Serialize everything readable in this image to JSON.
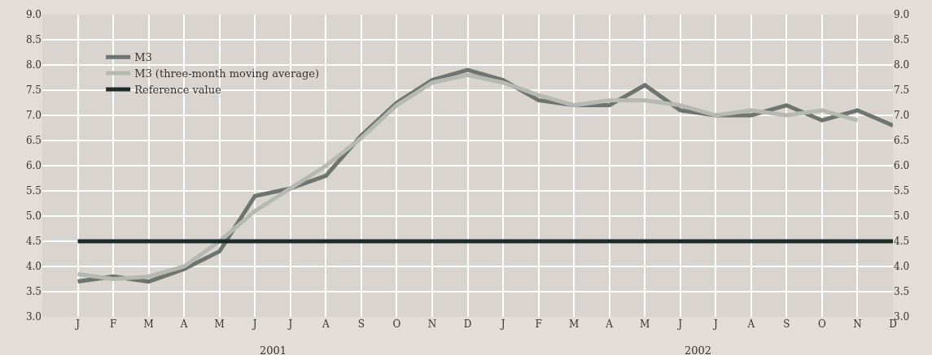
{
  "chart_data": {
    "type": "line",
    "categories": [
      "J",
      "F",
      "M",
      "A",
      "M",
      "J",
      "J",
      "A",
      "S",
      "O",
      "N",
      "D",
      "J",
      "F",
      "M",
      "A",
      "M",
      "J",
      "J",
      "A",
      "S",
      "O",
      "N",
      "D"
    ],
    "series": [
      {
        "name": "M3",
        "color": "#6e7570",
        "values": [
          3.7,
          3.8,
          3.7,
          3.95,
          4.3,
          5.4,
          5.55,
          5.8,
          6.6,
          7.25,
          7.7,
          7.9,
          7.7,
          7.3,
          7.2,
          7.2,
          7.6,
          7.1,
          7.0,
          7.0,
          7.2,
          6.9,
          7.1,
          6.8
        ]
      },
      {
        "name": "M3 (three-month moving average)",
        "color": "#b5b8b3",
        "values": [
          3.85,
          3.75,
          3.8,
          4.0,
          4.5,
          5.1,
          5.55,
          6.0,
          6.55,
          7.2,
          7.65,
          7.8,
          7.65,
          7.4,
          7.2,
          7.3,
          7.3,
          7.2,
          7.0,
          7.1,
          7.0,
          7.1,
          6.9,
          null
        ]
      },
      {
        "name": "Reference value",
        "color": "#1e2a26",
        "values": [
          4.5,
          4.5,
          4.5,
          4.5,
          4.5,
          4.5,
          4.5,
          4.5,
          4.5,
          4.5,
          4.5,
          4.5,
          4.5,
          4.5,
          4.5,
          4.5,
          4.5,
          4.5,
          4.5,
          4.5,
          4.5,
          4.5,
          4.5,
          4.5
        ]
      }
    ],
    "ylim": [
      3.0,
      9.0
    ],
    "yticks": [
      {
        "value": 3,
        "label": "3.0"
      },
      {
        "value": 3.5,
        "label": "3.5"
      },
      {
        "value": 4,
        "label": "4.0"
      },
      {
        "value": 4.5,
        "label": "4.5"
      },
      {
        "value": 5,
        "label": "5.0"
      },
      {
        "value": 5.5,
        "label": "5.5"
      },
      {
        "value": 6,
        "label": "6.0"
      },
      {
        "value": 6.5,
        "label": "6.5"
      },
      {
        "value": 7,
        "label": "7.0"
      },
      {
        "value": 7.5,
        "label": "7.5"
      },
      {
        "value": 8,
        "label": "8.0"
      },
      {
        "value": 8.5,
        "label": "8.5"
      },
      {
        "value": 9,
        "label": "9.0"
      }
    ],
    "y2lim": [
      3.0,
      9.0
    ],
    "y2ticks": [
      {
        "value": 3,
        "label": "3.0"
      },
      {
        "value": 3.5,
        "label": "3.5"
      },
      {
        "value": 4,
        "label": "4.0"
      },
      {
        "value": 4.5,
        "label": "4.5"
      },
      {
        "value": 5,
        "label": "5.0"
      },
      {
        "value": 5.5,
        "label": "5.5"
      },
      {
        "value": 6,
        "label": "6.0"
      },
      {
        "value": 6.5,
        "label": "6.5"
      },
      {
        "value": 7,
        "label": "7.0"
      },
      {
        "value": 7.5,
        "label": "7.5"
      },
      {
        "value": 8,
        "label": "8.0"
      },
      {
        "value": 8.5,
        "label": "8.5"
      },
      {
        "value": 9,
        "label": "9.0"
      }
    ],
    "annotations": [
      "2001",
      "2002"
    ],
    "grid": true,
    "legend": "top left",
    "marker": "none",
    "line_style": "solid"
  }
}
